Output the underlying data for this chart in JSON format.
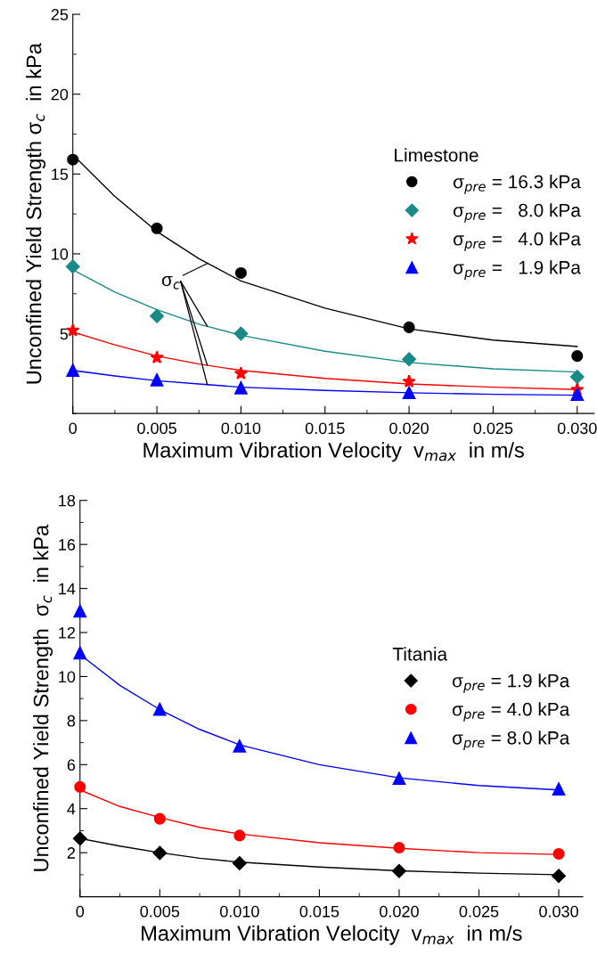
{
  "chart_data": [
    {
      "type": "scatter",
      "xlabel": "Maximum Vibration Velocity  v$_{max}$  in m/s",
      "ylabel": "Unconfined Yield Strength σ$_{c}$  in kPa",
      "legend_title": "Limestone",
      "legend": "right",
      "grid": false,
      "xlim": [
        0,
        0.031
      ],
      "xticks": [
        0,
        0.005,
        {
          "value": 0.01,
          "label": "0.010"
        },
        0.015,
        {
          "value": 0.02,
          "label": "0.020"
        },
        0.025,
        {
          "value": 0.03,
          "label": "0.030"
        }
      ],
      "ylim": [
        0,
        25
      ],
      "yticks": [
        5,
        10,
        15,
        20,
        25
      ],
      "annotations": [
        {
          "text": "σ$_{c}$",
          "x": 0.008,
          "y": 9.4
        }
      ],
      "series": [
        {
          "name": "σ$_{pre}$ = 16.3 kPa",
          "color": "#000000",
          "marker": "circle",
          "x": [
            0,
            0.005,
            0.01,
            0.02,
            0.03
          ],
          "values": [
            15.9,
            11.6,
            8.8,
            5.4,
            3.6
          ]
        },
        {
          "name": "σ$_{pre}$ =   8.0 kPa",
          "color": "#1a8a86",
          "marker": "diamond",
          "x": [
            0,
            0.005,
            0.01,
            0.02,
            0.03
          ],
          "values": [
            9.2,
            6.1,
            5.0,
            3.4,
            2.3
          ]
        },
        {
          "name": "σ$_{pre}$ =   4.0 kPa",
          "color": "#ff0000",
          "marker": "star",
          "x": [
            0,
            0.005,
            0.01,
            0.02,
            0.03
          ],
          "values": [
            5.2,
            3.5,
            2.5,
            2.0,
            1.5
          ]
        },
        {
          "name": "σ$_{pre}$ =   1.9 kPa",
          "color": "#0000ff",
          "marker": "triangle",
          "x": [
            0,
            0.005,
            0.01,
            0.02,
            0.03
          ],
          "values": [
            2.7,
            2.1,
            1.6,
            1.3,
            1.2
          ]
        },
        {
          "type": "line",
          "color": "#000000",
          "x": [
            0,
            0.0025,
            0.005,
            0.0075,
            0.01,
            0.015,
            0.02,
            0.025,
            0.03
          ],
          "values": [
            16.2,
            13.6,
            11.4,
            9.7,
            8.3,
            6.6,
            5.3,
            4.6,
            4.2
          ]
        },
        {
          "type": "line",
          "color": "#1a8a86",
          "x": [
            0,
            0.0025,
            0.005,
            0.0075,
            0.01,
            0.015,
            0.02,
            0.025,
            0.03
          ],
          "values": [
            9.0,
            7.6,
            6.5,
            5.6,
            4.9,
            3.9,
            3.2,
            2.8,
            2.6
          ]
        },
        {
          "type": "line",
          "color": "#ff0000",
          "x": [
            0,
            0.0025,
            0.005,
            0.0075,
            0.01,
            0.015,
            0.02,
            0.025,
            0.03
          ],
          "values": [
            5.1,
            4.3,
            3.6,
            3.1,
            2.7,
            2.2,
            1.85,
            1.65,
            1.5
          ]
        },
        {
          "type": "line",
          "color": "#0000ff",
          "x": [
            0,
            0.0025,
            0.005,
            0.0075,
            0.01,
            0.015,
            0.02,
            0.025,
            0.03
          ],
          "values": [
            2.7,
            2.35,
            2.05,
            1.85,
            1.65,
            1.45,
            1.3,
            1.2,
            1.15
          ]
        }
      ]
    },
    {
      "type": "scatter",
      "xlabel": "Maximum Vibration Velocity  v$_{max}$  in m/s",
      "ylabel": "Unconfined Yield Strength  σ$_{c}$  in kPa",
      "legend_title": "Titania",
      "legend": "right",
      "grid": false,
      "xlim": [
        0,
        0.0315
      ],
      "xticks": [
        0,
        0.005,
        {
          "value": 0.01,
          "label": "0.010"
        },
        0.015,
        {
          "value": 0.02,
          "label": "0.020"
        },
        0.025,
        {
          "value": 0.03,
          "label": "0.030"
        }
      ],
      "ylim": [
        0,
        18
      ],
      "yticks": [
        2,
        4,
        6,
        8,
        10,
        12,
        14,
        16,
        18
      ],
      "series": [
        {
          "name": "σ$_{pre}$ = 1.9 kPa",
          "color": "#000000",
          "marker": "diamond",
          "x": [
            0,
            0.005,
            0.01,
            0.02,
            0.03
          ],
          "values": [
            2.64,
            1.99,
            1.52,
            1.17,
            0.95
          ]
        },
        {
          "name": "σ$_{pre}$ = 4.0 kPa",
          "color": "#ff0000",
          "marker": "circle",
          "x": [
            0,
            0.005,
            0.01,
            0.02,
            0.03
          ],
          "values": [
            4.99,
            3.54,
            2.78,
            2.23,
            1.95
          ]
        },
        {
          "name": "σ$_{pre}$ = 8.0 kPa",
          "color": "#0000ff",
          "marker": "triangle",
          "x": [
            0,
            0,
            0.005,
            0.01,
            0.02,
            0.03
          ],
          "values": [
            12.97,
            11.07,
            8.51,
            6.84,
            5.37,
            4.89
          ]
        },
        {
          "type": "line",
          "color": "#000000",
          "x": [
            0,
            0.0025,
            0.005,
            0.0075,
            0.01,
            0.015,
            0.02,
            0.025,
            0.03
          ],
          "values": [
            2.65,
            2.3,
            2.0,
            1.75,
            1.57,
            1.35,
            1.18,
            1.07,
            1.0
          ]
        },
        {
          "type": "line",
          "color": "#ff0000",
          "x": [
            0,
            0.0025,
            0.005,
            0.0075,
            0.01,
            0.015,
            0.02,
            0.025,
            0.03
          ],
          "values": [
            4.85,
            4.1,
            3.6,
            3.15,
            2.85,
            2.45,
            2.2,
            2.0,
            1.92
          ]
        },
        {
          "type": "line",
          "color": "#0000ff",
          "x": [
            0,
            0.0025,
            0.005,
            0.0075,
            0.01,
            0.015,
            0.02,
            0.025,
            0.03
          ],
          "values": [
            11.0,
            9.6,
            8.5,
            7.6,
            6.9,
            6.0,
            5.4,
            5.05,
            4.85
          ]
        }
      ]
    }
  ]
}
